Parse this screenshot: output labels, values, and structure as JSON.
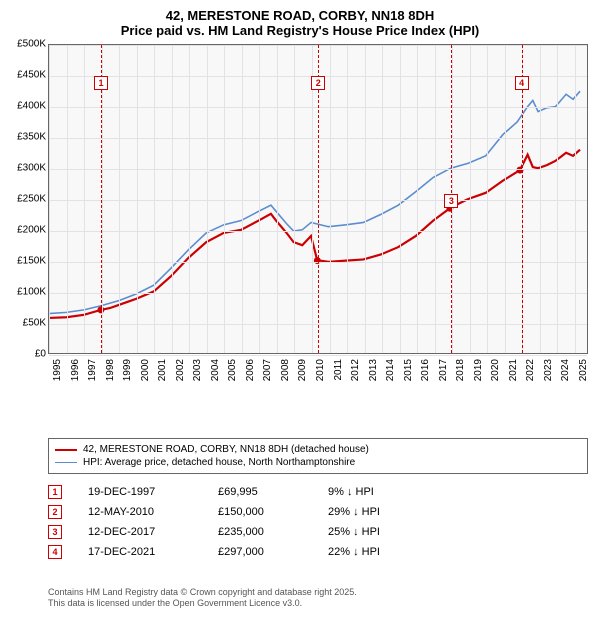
{
  "title": {
    "line1": "42, MERESTONE ROAD, CORBY, NN18 8DH",
    "line2": "Price paid vs. HM Land Registry's House Price Index (HPI)",
    "fontsize": 13,
    "color": "#000000"
  },
  "chart": {
    "type": "line",
    "background_color": "#f8f8f9",
    "border_color": "#666666",
    "grid_color": "#e2e2e6",
    "x": {
      "min": 1995,
      "max": 2025.8,
      "ticks": [
        1995,
        1996,
        1997,
        1998,
        1999,
        2000,
        2001,
        2002,
        2003,
        2004,
        2005,
        2006,
        2007,
        2008,
        2009,
        2010,
        2011,
        2012,
        2013,
        2014,
        2015,
        2016,
        2017,
        2018,
        2019,
        2020,
        2021,
        2022,
        2023,
        2024,
        2025
      ],
      "label_fontsize": 10
    },
    "y": {
      "min": 0,
      "max": 500000,
      "ticks": [
        0,
        50000,
        100000,
        150000,
        200000,
        250000,
        300000,
        350000,
        400000,
        450000,
        500000
      ],
      "tick_labels": [
        "£0",
        "£50K",
        "£100K",
        "£150K",
        "£200K",
        "£250K",
        "£300K",
        "£350K",
        "£400K",
        "£450K",
        "£500K"
      ],
      "label_fontsize": 10
    },
    "series": [
      {
        "name": "42, MERESTONE ROAD, CORBY, NN18 8DH (detached house)",
        "color": "#cc0000",
        "width": 2.2,
        "points": [
          [
            1995,
            57000
          ],
          [
            1996,
            58000
          ],
          [
            1997,
            62000
          ],
          [
            1997.97,
            69995
          ],
          [
            1998.5,
            73000
          ],
          [
            1999,
            78000
          ],
          [
            2000,
            88000
          ],
          [
            2001,
            100000
          ],
          [
            2002,
            125000
          ],
          [
            2003,
            155000
          ],
          [
            2004,
            180000
          ],
          [
            2005,
            195000
          ],
          [
            2006,
            200000
          ],
          [
            2007,
            215000
          ],
          [
            2007.7,
            226000
          ],
          [
            2008,
            215000
          ],
          [
            2008.6,
            195000
          ],
          [
            2009,
            180000
          ],
          [
            2009.5,
            175000
          ],
          [
            2010,
            190000
          ],
          [
            2010.36,
            150000
          ],
          [
            2010.5,
            150000
          ],
          [
            2011,
            148000
          ],
          [
            2012,
            150000
          ],
          [
            2013,
            152000
          ],
          [
            2014,
            160000
          ],
          [
            2015,
            172000
          ],
          [
            2016,
            190000
          ],
          [
            2017,
            215000
          ],
          [
            2017.95,
            235000
          ],
          [
            2018.5,
            243000
          ],
          [
            2019,
            250000
          ],
          [
            2020,
            260000
          ],
          [
            2021,
            280000
          ],
          [
            2021.96,
            297000
          ],
          [
            2022.4,
            322000
          ],
          [
            2022.7,
            302000
          ],
          [
            2023,
            300000
          ],
          [
            2023.5,
            305000
          ],
          [
            2024,
            312000
          ],
          [
            2024.6,
            325000
          ],
          [
            2025,
            320000
          ],
          [
            2025.4,
            330000
          ]
        ],
        "sale_markers": [
          {
            "x": 1997.97,
            "y": 69995
          },
          {
            "x": 2010.36,
            "y": 150000
          },
          {
            "x": 2017.95,
            "y": 235000
          },
          {
            "x": 2021.96,
            "y": 297000
          }
        ]
      },
      {
        "name": "HPI: Average price, detached house, North Northamptonshire",
        "color": "#5b8dce",
        "width": 1.6,
        "points": [
          [
            1995,
            64000
          ],
          [
            1996,
            66000
          ],
          [
            1997,
            70000
          ],
          [
            1998,
            77000
          ],
          [
            1999,
            85000
          ],
          [
            2000,
            96000
          ],
          [
            2001,
            110000
          ],
          [
            2002,
            138000
          ],
          [
            2003,
            168000
          ],
          [
            2004,
            195000
          ],
          [
            2005,
            208000
          ],
          [
            2006,
            215000
          ],
          [
            2007,
            230000
          ],
          [
            2007.7,
            240000
          ],
          [
            2008,
            230000
          ],
          [
            2008.6,
            210000
          ],
          [
            2009,
            198000
          ],
          [
            2009.5,
            200000
          ],
          [
            2010,
            212000
          ],
          [
            2011,
            205000
          ],
          [
            2012,
            208000
          ],
          [
            2013,
            212000
          ],
          [
            2014,
            225000
          ],
          [
            2015,
            240000
          ],
          [
            2016,
            262000
          ],
          [
            2017,
            285000
          ],
          [
            2018,
            300000
          ],
          [
            2019,
            308000
          ],
          [
            2020,
            320000
          ],
          [
            2021,
            355000
          ],
          [
            2021.8,
            375000
          ],
          [
            2022.4,
            400000
          ],
          [
            2022.7,
            410000
          ],
          [
            2023,
            392000
          ],
          [
            2023.5,
            398000
          ],
          [
            2024,
            400000
          ],
          [
            2024.6,
            420000
          ],
          [
            2025,
            412000
          ],
          [
            2025.4,
            425000
          ]
        ]
      }
    ],
    "markers": [
      {
        "n": "1",
        "x": 1997.97,
        "box_y": 0.1
      },
      {
        "n": "2",
        "x": 2010.36,
        "box_y": 0.1
      },
      {
        "n": "3",
        "x": 2017.95,
        "box_y": 0.48
      },
      {
        "n": "4",
        "x": 2021.96,
        "box_y": 0.1
      }
    ],
    "marker_color": "#cc0000"
  },
  "legend": {
    "items": [
      {
        "label": "42, MERESTONE ROAD, CORBY, NN18 8DH (detached house)",
        "color": "#cc0000",
        "width": 2.2
      },
      {
        "label": "HPI: Average price, detached house, North Northamptonshire",
        "color": "#5b8dce",
        "width": 1.6
      }
    ],
    "fontsize": 10,
    "border_color": "#666666"
  },
  "sales": [
    {
      "n": "1",
      "date": "19-DEC-1997",
      "price": "£69,995",
      "pct": "9% ↓ HPI"
    },
    {
      "n": "2",
      "date": "12-MAY-2010",
      "price": "£150,000",
      "pct": "29% ↓ HPI"
    },
    {
      "n": "3",
      "date": "12-DEC-2017",
      "price": "£235,000",
      "pct": "25% ↓ HPI"
    },
    {
      "n": "4",
      "date": "17-DEC-2021",
      "price": "£297,000",
      "pct": "22% ↓ HPI"
    }
  ],
  "footer": {
    "line1": "Contains HM Land Registry data © Crown copyright and database right 2025.",
    "line2": "This data is licensed under the Open Government Licence v3.0.",
    "color": "#555555",
    "fontsize": 9
  }
}
